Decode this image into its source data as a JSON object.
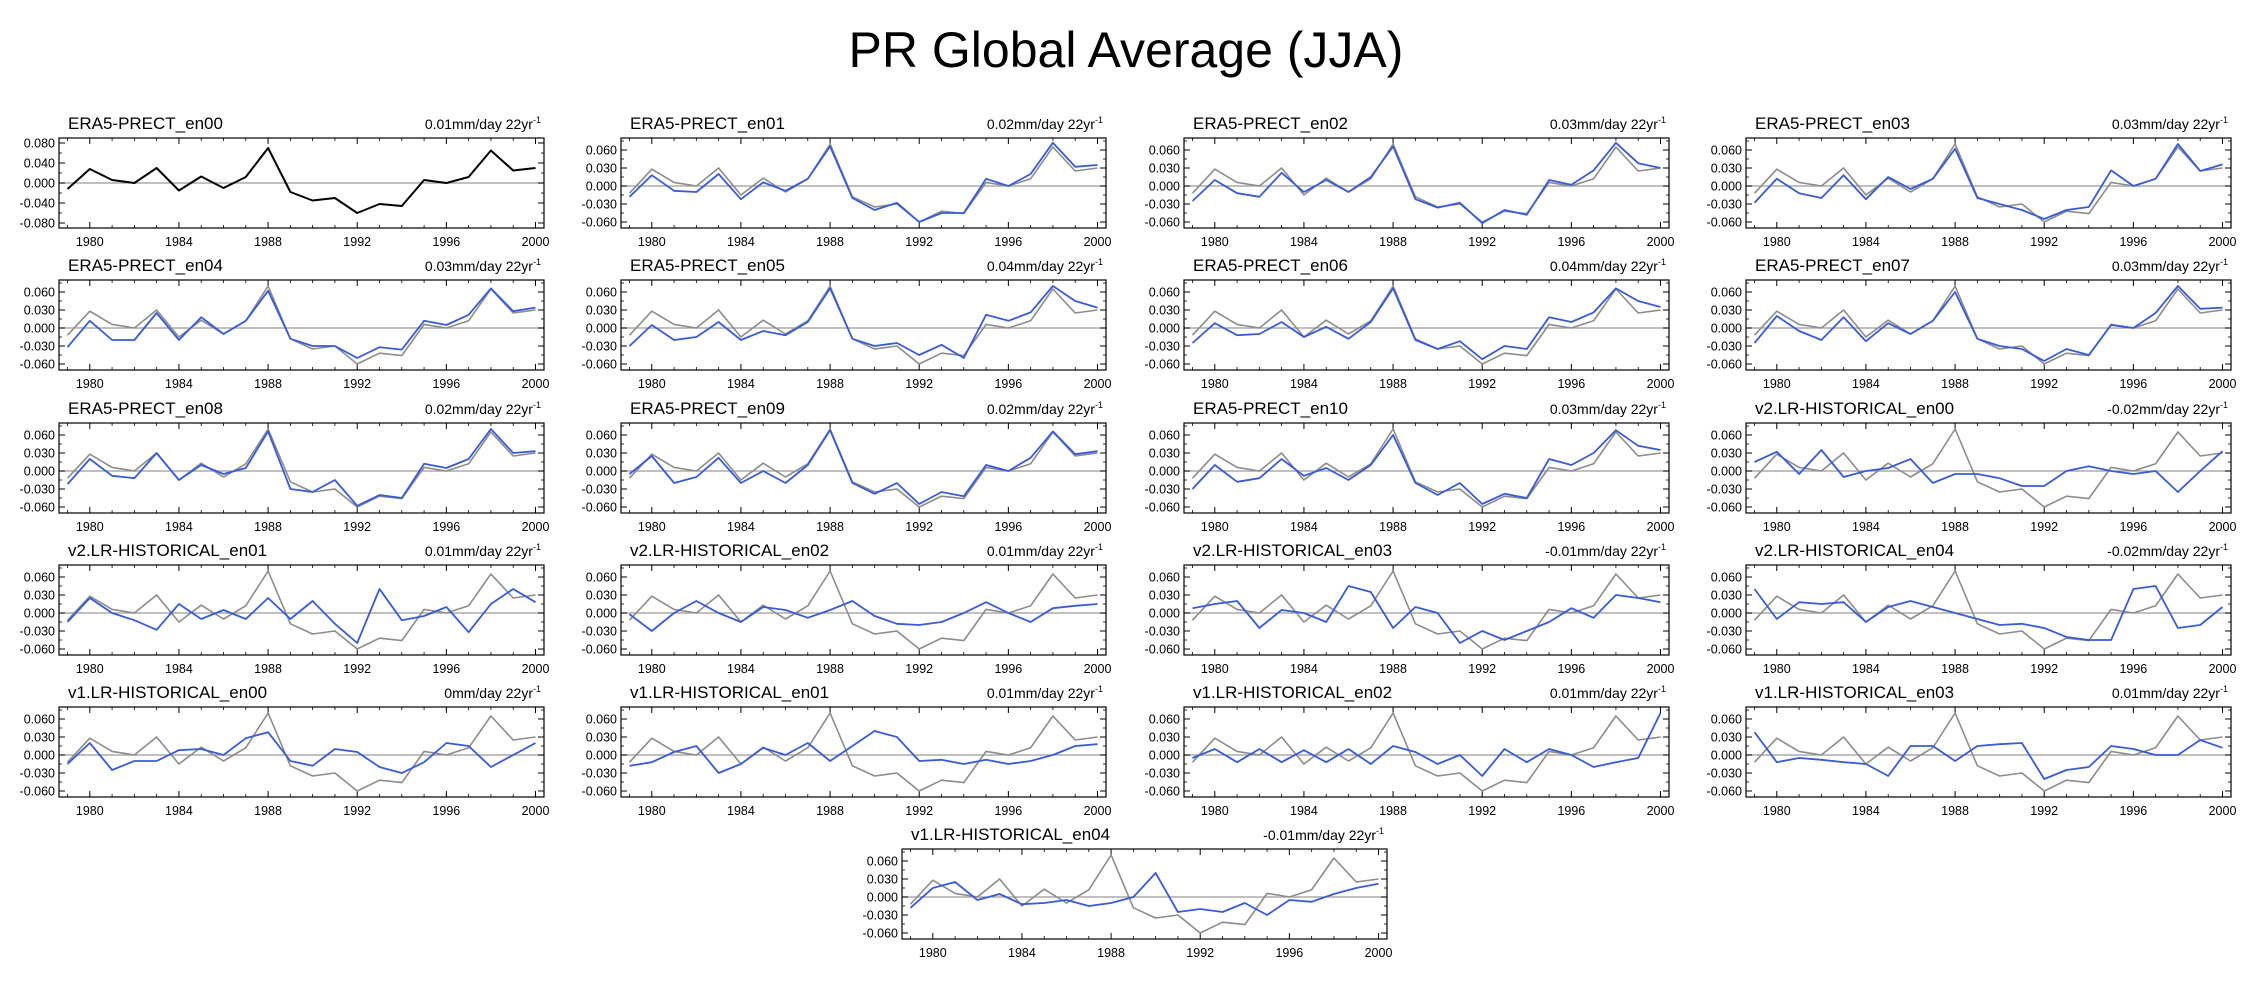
{
  "title": "PR Global Average (JJA)",
  "colors": {
    "reference": "#000000",
    "reference_overlay": "#8c8c8c",
    "member": "#3a5bd6",
    "zero_line": "#9a9a9a",
    "axis": "#000000"
  },
  "chart_data": {
    "type": "line",
    "x": [
      1979,
      1980,
      1981,
      1982,
      1983,
      1984,
      1985,
      1986,
      1987,
      1988,
      1989,
      1990,
      1991,
      1992,
      1993,
      1994,
      1995,
      1996,
      1997,
      1998,
      1999,
      2000
    ],
    "xticks": [
      1980,
      1984,
      1988,
      1992,
      1996,
      2000
    ],
    "xticklabels": [
      "1980",
      "1984",
      "1988",
      "1992",
      "1996",
      "2000"
    ],
    "reference": "ERA5-PRECT_en00",
    "panels": [
      {
        "title": "ERA5-PRECT_en00",
        "trend": "0.01mm/day 22yr",
        "trend_exp": "-1",
        "ylim": [
          -0.09,
          0.09
        ],
        "yticks": [
          0.08,
          0.04,
          0.0,
          -0.04,
          -0.08
        ],
        "yticklabels": [
          "0.080",
          "0.040",
          "0.000",
          "-0.040",
          "-0.080"
        ],
        "show_reference": false,
        "values": [
          -0.012,
          0.028,
          0.006,
          0.0,
          0.03,
          -0.015,
          0.013,
          -0.01,
          0.012,
          0.07,
          -0.018,
          -0.035,
          -0.03,
          -0.06,
          -0.042,
          -0.046,
          0.006,
          0.0,
          0.012,
          0.065,
          0.025,
          0.03
        ]
      },
      {
        "title": "ERA5-PRECT_en01",
        "trend": "0.02mm/day 22yr",
        "trend_exp": "-1",
        "ylim": [
          -0.07,
          0.08
        ],
        "yticks": [
          0.06,
          0.03,
          0.0,
          -0.03,
          -0.06
        ],
        "yticklabels": [
          "0.060",
          "0.030",
          "0.000",
          "-0.030",
          "-0.060"
        ],
        "show_reference": true,
        "values": [
          -0.018,
          0.018,
          -0.008,
          -0.01,
          0.02,
          -0.022,
          0.006,
          -0.008,
          0.012,
          0.066,
          -0.02,
          -0.04,
          -0.028,
          -0.06,
          -0.045,
          -0.045,
          0.012,
          0.0,
          0.02,
          0.072,
          0.032,
          0.035
        ]
      },
      {
        "title": "ERA5-PRECT_en02",
        "trend": "0.03mm/day 22yr",
        "trend_exp": "-1",
        "ylim": [
          -0.07,
          0.08
        ],
        "yticks": [
          0.06,
          0.03,
          0.0,
          -0.03,
          -0.06
        ],
        "yticklabels": [
          "0.060",
          "0.030",
          "0.000",
          "-0.030",
          "-0.060"
        ],
        "show_reference": true,
        "values": [
          -0.025,
          0.01,
          -0.012,
          -0.018,
          0.022,
          -0.01,
          0.01,
          -0.01,
          0.015,
          0.066,
          -0.022,
          -0.036,
          -0.028,
          -0.062,
          -0.04,
          -0.048,
          0.01,
          0.002,
          0.026,
          0.072,
          0.038,
          0.03
        ]
      },
      {
        "title": "ERA5-PRECT_en03",
        "trend": "0.03mm/day 22yr",
        "trend_exp": "-1",
        "ylim": [
          -0.07,
          0.08
        ],
        "yticks": [
          0.06,
          0.03,
          0.0,
          -0.03,
          -0.06
        ],
        "yticklabels": [
          "0.060",
          "0.030",
          "0.000",
          "-0.030",
          "-0.060"
        ],
        "show_reference": true,
        "values": [
          -0.028,
          0.012,
          -0.012,
          -0.02,
          0.018,
          -0.022,
          0.015,
          -0.005,
          0.012,
          0.062,
          -0.02,
          -0.03,
          -0.04,
          -0.055,
          -0.04,
          -0.035,
          0.026,
          0.0,
          0.012,
          0.07,
          0.025,
          0.036
        ]
      },
      {
        "title": "ERA5-PRECT_en04",
        "trend": "0.03mm/day 22yr",
        "trend_exp": "-1",
        "ylim": [
          -0.07,
          0.08
        ],
        "yticks": [
          0.06,
          0.03,
          0.0,
          -0.03,
          -0.06
        ],
        "yticklabels": [
          "0.060",
          "0.030",
          "0.000",
          "-0.030",
          "-0.060"
        ],
        "show_reference": true,
        "values": [
          -0.032,
          0.012,
          -0.02,
          -0.02,
          0.025,
          -0.02,
          0.018,
          -0.01,
          0.012,
          0.062,
          -0.018,
          -0.03,
          -0.03,
          -0.05,
          -0.032,
          -0.036,
          0.012,
          0.005,
          0.022,
          0.066,
          0.028,
          0.034
        ]
      },
      {
        "title": "ERA5-PRECT_en05",
        "trend": "0.04mm/day 22yr",
        "trend_exp": "-1",
        "ylim": [
          -0.07,
          0.08
        ],
        "yticks": [
          0.06,
          0.03,
          0.0,
          -0.03,
          -0.06
        ],
        "yticklabels": [
          "0.060",
          "0.030",
          "0.000",
          "-0.030",
          "-0.060"
        ],
        "show_reference": true,
        "values": [
          -0.03,
          0.005,
          -0.02,
          -0.015,
          0.01,
          -0.02,
          -0.005,
          -0.012,
          0.01,
          0.066,
          -0.018,
          -0.03,
          -0.025,
          -0.045,
          -0.028,
          -0.05,
          0.022,
          0.012,
          0.026,
          0.07,
          0.045,
          0.034
        ]
      },
      {
        "title": "ERA5-PRECT_en06",
        "trend": "0.04mm/day 22yr",
        "trend_exp": "-1",
        "ylim": [
          -0.07,
          0.08
        ],
        "yticks": [
          0.06,
          0.03,
          0.0,
          -0.03,
          -0.06
        ],
        "yticklabels": [
          "0.060",
          "0.030",
          "0.000",
          "-0.030",
          "-0.060"
        ],
        "show_reference": true,
        "values": [
          -0.025,
          0.008,
          -0.012,
          -0.01,
          0.01,
          -0.015,
          0.002,
          -0.018,
          0.01,
          0.066,
          -0.02,
          -0.035,
          -0.022,
          -0.052,
          -0.03,
          -0.035,
          0.018,
          0.01,
          0.026,
          0.066,
          0.045,
          0.035
        ]
      },
      {
        "title": "ERA5-PRECT_en07",
        "trend": "0.03mm/day 22yr",
        "trend_exp": "-1",
        "ylim": [
          -0.07,
          0.08
        ],
        "yticks": [
          0.06,
          0.03,
          0.0,
          -0.03,
          -0.06
        ],
        "yticklabels": [
          "0.060",
          "0.030",
          "0.000",
          "-0.030",
          "-0.060"
        ],
        "show_reference": true,
        "values": [
          -0.025,
          0.02,
          -0.005,
          -0.02,
          0.018,
          -0.022,
          0.008,
          -0.01,
          0.012,
          0.06,
          -0.018,
          -0.03,
          -0.035,
          -0.055,
          -0.035,
          -0.045,
          0.005,
          0.0,
          0.025,
          0.07,
          0.032,
          0.034
        ]
      },
      {
        "title": "ERA5-PRECT_en08",
        "trend": "0.02mm/day 22yr",
        "trend_exp": "-1",
        "ylim": [
          -0.07,
          0.08
        ],
        "yticks": [
          0.06,
          0.03,
          0.0,
          -0.03,
          -0.06
        ],
        "yticklabels": [
          "0.060",
          "0.030",
          "0.000",
          "-0.030",
          "-0.060"
        ],
        "show_reference": true,
        "values": [
          -0.022,
          0.02,
          -0.008,
          -0.012,
          0.03,
          -0.015,
          0.01,
          -0.005,
          0.005,
          0.066,
          -0.03,
          -0.035,
          -0.015,
          -0.058,
          -0.04,
          -0.045,
          0.012,
          0.005,
          0.02,
          0.07,
          0.03,
          0.033
        ]
      },
      {
        "title": "ERA5-PRECT_en09",
        "trend": "0.02mm/day 22yr",
        "trend_exp": "-1",
        "ylim": [
          -0.07,
          0.08
        ],
        "yticks": [
          0.06,
          0.03,
          0.0,
          -0.03,
          -0.06
        ],
        "yticklabels": [
          "0.060",
          "0.030",
          "0.000",
          "-0.030",
          "-0.060"
        ],
        "show_reference": true,
        "values": [
          -0.005,
          0.025,
          -0.02,
          -0.01,
          0.022,
          -0.02,
          0.0,
          -0.02,
          0.01,
          0.068,
          -0.02,
          -0.038,
          -0.02,
          -0.055,
          -0.035,
          -0.042,
          0.01,
          0.0,
          0.022,
          0.066,
          0.028,
          0.033
        ]
      },
      {
        "title": "ERA5-PRECT_en10",
        "trend": "0.03mm/day 22yr",
        "trend_exp": "-1",
        "ylim": [
          -0.07,
          0.08
        ],
        "yticks": [
          0.06,
          0.03,
          0.0,
          -0.03,
          -0.06
        ],
        "yticklabels": [
          "0.060",
          "0.030",
          "0.000",
          "-0.030",
          "-0.060"
        ],
        "show_reference": true,
        "values": [
          -0.03,
          0.01,
          -0.018,
          -0.012,
          0.02,
          -0.008,
          0.005,
          -0.015,
          0.01,
          0.06,
          -0.02,
          -0.04,
          -0.02,
          -0.055,
          -0.038,
          -0.045,
          0.02,
          0.01,
          0.03,
          0.068,
          0.042,
          0.035
        ]
      },
      {
        "title": "v2.LR-HISTORICAL_en00",
        "trend": "-0.02mm/day 22yr",
        "trend_exp": "-1",
        "ylim": [
          -0.07,
          0.08
        ],
        "yticks": [
          0.06,
          0.03,
          0.0,
          -0.03,
          -0.06
        ],
        "yticklabels": [
          "0.060",
          "0.030",
          "0.000",
          "-0.030",
          "-0.060"
        ],
        "show_reference": true,
        "values": [
          0.015,
          0.032,
          -0.005,
          0.035,
          -0.01,
          0.0,
          0.005,
          0.02,
          -0.02,
          -0.005,
          -0.005,
          -0.012,
          -0.025,
          -0.025,
          0.0,
          0.008,
          0.0,
          -0.005,
          0.0,
          -0.035,
          0.0,
          0.033
        ]
      },
      {
        "title": "v2.LR-HISTORICAL_en01",
        "trend": "0.01mm/day 22yr",
        "trend_exp": "-1",
        "ylim": [
          -0.07,
          0.08
        ],
        "yticks": [
          0.06,
          0.03,
          0.0,
          -0.03,
          -0.06
        ],
        "yticklabels": [
          "0.060",
          "0.030",
          "0.000",
          "-0.030",
          "-0.060"
        ],
        "show_reference": true,
        "values": [
          -0.015,
          0.025,
          0.0,
          -0.012,
          -0.028,
          0.015,
          -0.01,
          0.005,
          -0.01,
          0.025,
          -0.01,
          0.02,
          -0.018,
          -0.05,
          0.04,
          -0.012,
          -0.005,
          0.01,
          -0.032,
          0.015,
          0.04,
          0.018
        ]
      },
      {
        "title": "v2.LR-HISTORICAL_en02",
        "trend": "0.01mm/day 22yr",
        "trend_exp": "-1",
        "ylim": [
          -0.07,
          0.08
        ],
        "yticks": [
          0.06,
          0.03,
          0.0,
          -0.03,
          -0.06
        ],
        "yticklabels": [
          "0.060",
          "0.030",
          "0.000",
          "-0.030",
          "-0.060"
        ],
        "show_reference": true,
        "values": [
          -0.002,
          -0.03,
          0.0,
          0.02,
          0.0,
          -0.015,
          0.01,
          0.005,
          -0.008,
          0.005,
          0.02,
          -0.005,
          -0.018,
          -0.02,
          -0.015,
          0.0,
          0.018,
          0.0,
          -0.015,
          0.008,
          0.012,
          0.015
        ]
      },
      {
        "title": "v2.LR-HISTORICAL_en03",
        "trend": "-0.01mm/day 22yr",
        "trend_exp": "-1",
        "ylim": [
          -0.07,
          0.08
        ],
        "yticks": [
          0.06,
          0.03,
          0.0,
          -0.03,
          -0.06
        ],
        "yticklabels": [
          "0.060",
          "0.030",
          "0.000",
          "-0.030",
          "-0.060"
        ],
        "show_reference": true,
        "values": [
          0.008,
          0.015,
          0.02,
          -0.025,
          0.005,
          0.0,
          -0.015,
          0.045,
          0.035,
          -0.025,
          0.01,
          0.0,
          -0.05,
          -0.03,
          -0.045,
          -0.03,
          -0.015,
          0.008,
          -0.008,
          0.03,
          0.025,
          0.018
        ]
      },
      {
        "title": "v2.LR-HISTORICAL_en04",
        "trend": "-0.02mm/day 22yr",
        "trend_exp": "-1",
        "ylim": [
          -0.07,
          0.08
        ],
        "yticks": [
          0.06,
          0.03,
          0.0,
          -0.03,
          -0.06
        ],
        "yticklabels": [
          "0.060",
          "0.030",
          "0.000",
          "-0.030",
          "-0.060"
        ],
        "show_reference": true,
        "values": [
          0.04,
          -0.01,
          0.018,
          0.015,
          0.018,
          -0.015,
          0.01,
          0.02,
          0.01,
          0.0,
          -0.01,
          -0.02,
          -0.018,
          -0.025,
          -0.04,
          -0.045,
          -0.045,
          0.04,
          0.045,
          -0.025,
          -0.02,
          0.01
        ]
      },
      {
        "title": "v1.LR-HISTORICAL_en00",
        "trend": "0mm/day 22yr",
        "trend_exp": "-1",
        "ylim": [
          -0.07,
          0.08
        ],
        "yticks": [
          0.06,
          0.03,
          0.0,
          -0.03,
          -0.06
        ],
        "yticklabels": [
          "0.060",
          "0.030",
          "0.000",
          "-0.030",
          "-0.060"
        ],
        "show_reference": true,
        "values": [
          -0.015,
          0.02,
          -0.025,
          -0.01,
          -0.01,
          0.008,
          0.01,
          0.0,
          0.028,
          0.038,
          -0.01,
          -0.018,
          0.01,
          0.005,
          -0.02,
          -0.03,
          -0.012,
          0.02,
          0.015,
          -0.02,
          0.0,
          0.02
        ]
      },
      {
        "title": "v1.LR-HISTORICAL_en01",
        "trend": "0.01mm/day 22yr",
        "trend_exp": "-1",
        "ylim": [
          -0.07,
          0.08
        ],
        "yticks": [
          0.06,
          0.03,
          0.0,
          -0.03,
          -0.06
        ],
        "yticklabels": [
          "0.060",
          "0.030",
          "0.000",
          "-0.030",
          "-0.060"
        ],
        "show_reference": true,
        "values": [
          -0.018,
          -0.012,
          0.005,
          0.015,
          -0.03,
          -0.015,
          0.012,
          0.0,
          0.02,
          -0.01,
          0.015,
          0.04,
          0.03,
          -0.01,
          -0.008,
          -0.015,
          -0.008,
          -0.015,
          -0.01,
          0.0,
          0.015,
          0.018
        ]
      },
      {
        "title": "v1.LR-HISTORICAL_en02",
        "trend": "0.01mm/day 22yr",
        "trend_exp": "-1",
        "ylim": [
          -0.07,
          0.08
        ],
        "yticks": [
          0.06,
          0.03,
          0.0,
          -0.03,
          -0.06
        ],
        "yticklabels": [
          "0.060",
          "0.030",
          "0.000",
          "-0.030",
          "-0.060"
        ],
        "show_reference": true,
        "values": [
          -0.005,
          0.01,
          -0.012,
          0.01,
          -0.012,
          0.008,
          -0.012,
          0.01,
          -0.015,
          0.015,
          0.005,
          -0.015,
          0.0,
          -0.035,
          0.01,
          -0.012,
          0.01,
          0.0,
          -0.02,
          -0.012,
          -0.005,
          0.07
        ]
      },
      {
        "title": "v1.LR-HISTORICAL_en03",
        "trend": "0.01mm/day 22yr",
        "trend_exp": "-1",
        "ylim": [
          -0.07,
          0.08
        ],
        "yticks": [
          0.06,
          0.03,
          0.0,
          -0.03,
          -0.06
        ],
        "yticklabels": [
          "0.060",
          "0.030",
          "0.000",
          "-0.030",
          "-0.060"
        ],
        "show_reference": true,
        "values": [
          0.038,
          -0.012,
          -0.005,
          -0.008,
          -0.012,
          -0.015,
          -0.035,
          0.015,
          0.015,
          -0.01,
          0.015,
          0.018,
          0.02,
          -0.04,
          -0.025,
          -0.02,
          0.015,
          0.01,
          0.0,
          0.0,
          0.025,
          0.012
        ]
      },
      {
        "title": "v1.LR-HISTORICAL_en04",
        "trend": "-0.01mm/day 22yr",
        "trend_exp": "-1",
        "ylim": [
          -0.07,
          0.08
        ],
        "yticks": [
          0.06,
          0.03,
          0.0,
          -0.03,
          -0.06
        ],
        "yticklabels": [
          "0.060",
          "0.030",
          "0.000",
          "-0.030",
          "-0.060"
        ],
        "show_reference": true,
        "values": [
          -0.018,
          0.015,
          0.025,
          -0.005,
          0.005,
          -0.012,
          -0.01,
          -0.005,
          -0.015,
          -0.01,
          0.0,
          0.04,
          -0.025,
          -0.02,
          -0.025,
          -0.01,
          -0.03,
          -0.005,
          -0.008,
          0.005,
          0.015,
          0.022
        ]
      }
    ]
  }
}
